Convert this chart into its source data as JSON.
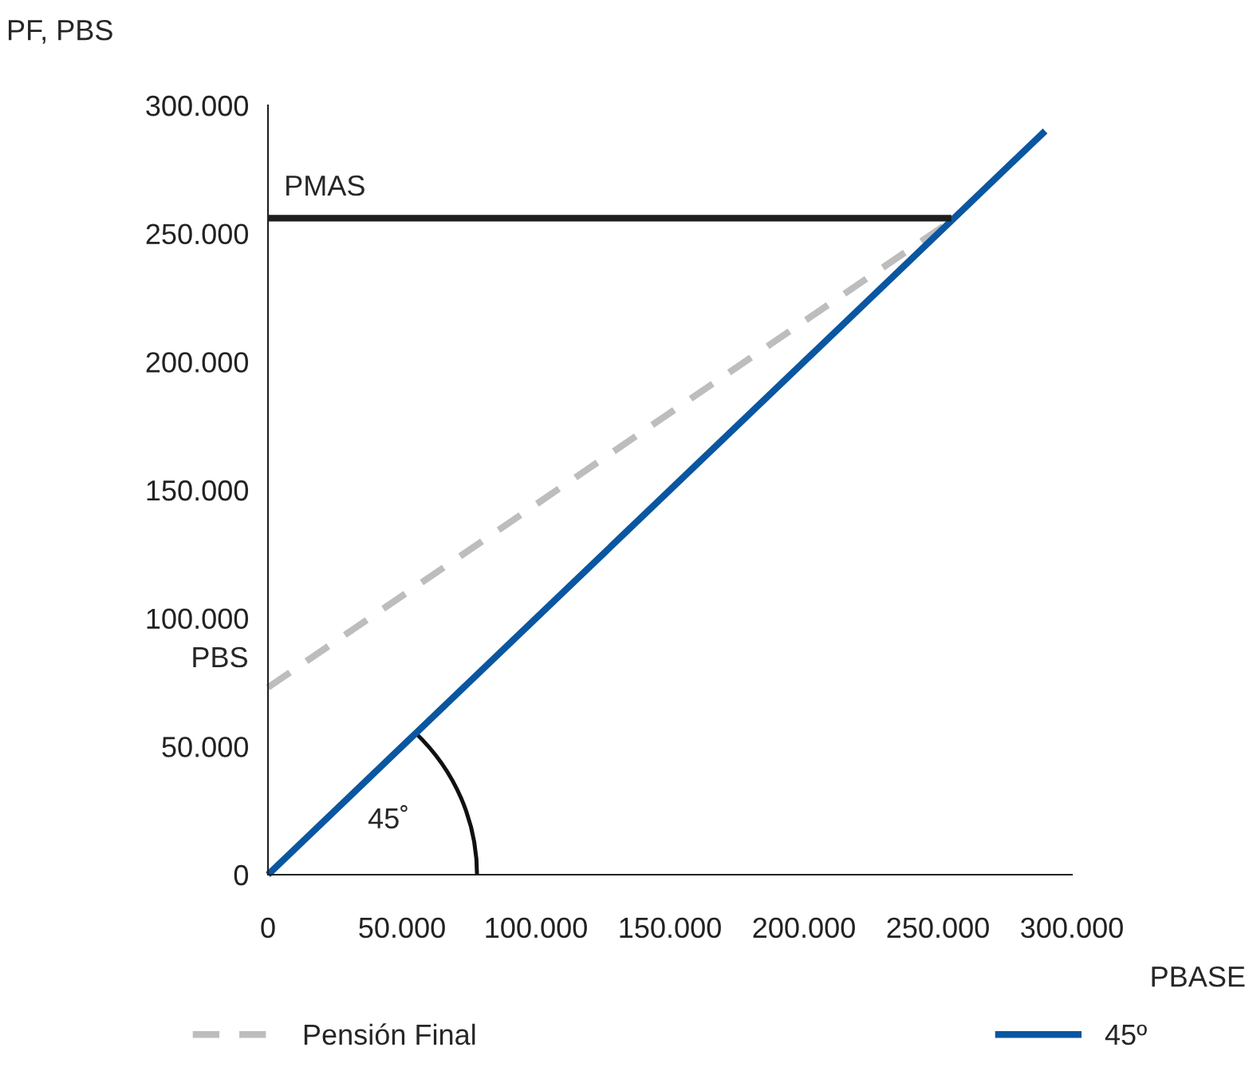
{
  "chart_data": {
    "type": "line",
    "xlabel": "PBASE",
    "ylabel": "PF, PBS",
    "series": [
      {
        "name": "Pensión Final",
        "color": "#bdbdbd",
        "line_style": "dashed",
        "x": [
          0,
          255000
        ],
        "values": [
          73000,
          255000
        ]
      },
      {
        "name": "45º",
        "color": "#0a56a0",
        "line_style": "solid",
        "x": [
          0,
          290000
        ],
        "values": [
          0,
          290000
        ]
      },
      {
        "color": "#1e1e1e",
        "line_style": "solid",
        "x": [
          0,
          255000
        ],
        "values": [
          256000,
          256000
        ]
      }
    ],
    "xlim": [
      0,
      300000
    ],
    "ylim": [
      0,
      300000
    ],
    "xticks": [
      0,
      {
        "value": 50000,
        "label": "50.000"
      },
      {
        "value": 100000,
        "label": "100.000"
      },
      {
        "value": 150000,
        "label": "150.000"
      },
      {
        "value": 200000,
        "label": "200.000"
      },
      {
        "value": 250000,
        "label": "250.000"
      },
      {
        "value": 300000,
        "label": "300.000"
      }
    ],
    "yticks": [
      0,
      {
        "value": 50000,
        "label": "50.000"
      },
      {
        "value": 100000,
        "label": "100.000"
      },
      {
        "value": 150000,
        "label": "150.000"
      },
      {
        "value": 200000,
        "label": "200.000"
      },
      {
        "value": 250000,
        "label": "250.000"
      },
      {
        "value": 300000,
        "label": "300.000"
      }
    ],
    "annotations": [
      "PMAS",
      "PBS",
      "45˚"
    ],
    "grid": false,
    "legend": "bottom"
  }
}
